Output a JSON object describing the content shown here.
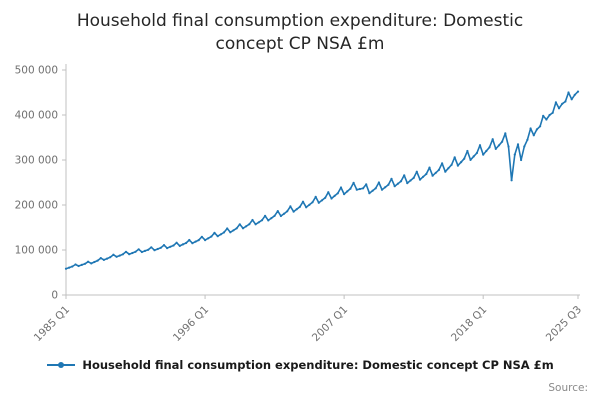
{
  "title": "Household final consumption expenditure: Domestic concept CP NSA £m",
  "legend": {
    "label": "Household final consumption expenditure: Domestic concept CP NSA £m"
  },
  "source_label": "Source:",
  "chart_data": {
    "type": "line",
    "title": "Household final consumption expenditure: Domestic concept CP NSA £m",
    "xlabel": "",
    "ylabel": "",
    "ylim": [
      0,
      500000
    ],
    "grid": false,
    "legend_position": "bottom",
    "x_unit": "quarter",
    "x_start": "1985 Q1",
    "x_end": "2025 Q3",
    "y_ticks": [
      {
        "value": 0,
        "label": "0"
      },
      {
        "value": 100000,
        "label": "100 000"
      },
      {
        "value": 200000,
        "label": "200 000"
      },
      {
        "value": 300000,
        "label": "300 000"
      },
      {
        "value": 400000,
        "label": "400 000"
      },
      {
        "value": 500000,
        "label": "500 000"
      }
    ],
    "x_ticks": [
      {
        "index": 0,
        "label": "1985 Q1"
      },
      {
        "index": 44,
        "label": "1996 Q1"
      },
      {
        "index": 88,
        "label": "2007 Q1"
      },
      {
        "index": 132,
        "label": "2018 Q1"
      },
      {
        "index": 162,
        "label": "2025 Q3"
      }
    ],
    "series": [
      {
        "name": "Household final consumption expenditure: Domestic concept CP NSA £m",
        "color": "#1f77b4",
        "values": [
          58500,
          60900,
          63300,
          67700,
          64400,
          66800,
          69300,
          74000,
          70200,
          73300,
          76400,
          81900,
          78000,
          80900,
          83900,
          89500,
          84800,
          87600,
          90500,
          96100,
          90700,
          93300,
          96000,
          101600,
          95600,
          98000,
          100500,
          106100,
          99500,
          102200,
          105000,
          111000,
          104300,
          107200,
          110000,
          116300,
          109200,
          112400,
          115600,
          122300,
          115100,
          118600,
          122100,
          129400,
          121900,
          126000,
          130100,
          138300,
          130700,
          134900,
          139200,
          147800,
          139400,
          143800,
          148200,
          157200,
          148200,
          152700,
          157300,
          166700,
          157000,
          161600,
          166300,
          176100,
          165800,
          170800,
          175900,
          186400,
          175500,
          180700,
          185900,
          196900,
          185300,
          190600,
          196000,
          207400,
          195000,
          200500,
          206000,
          217900,
          204800,
          210400,
          216100,
          228400,
          214500,
          220300,
          226100,
          238900,
          224300,
          230200,
          236200,
          249400,
          234000,
          235600,
          237200,
          245700,
          226200,
          231700,
          237200,
          249900,
          234000,
          239600,
          245200,
          258300,
          241800,
          247300,
          252800,
          265900,
          248600,
          254400,
          260300,
          274100,
          256400,
          262600,
          268800,
          283200,
          265200,
          271500,
          277900,
          292700,
          274000,
          281700,
          289400,
          306100,
          287600,
          295300,
          303000,
          320000,
          300300,
          307900,
          315600,
          332900,
          312000,
          320000,
          328200,
          346200,
          324700,
          332600,
          340700,
          359100,
          330000,
          255000,
          312000,
          335000,
          300000,
          330000,
          345000,
          370000,
          355000,
          368000,
          375000,
          398000,
          390000,
          400000,
          405000,
          428000,
          415000,
          425000,
          430000,
          450000,
          435000,
          445000,
          452000
        ]
      }
    ]
  }
}
